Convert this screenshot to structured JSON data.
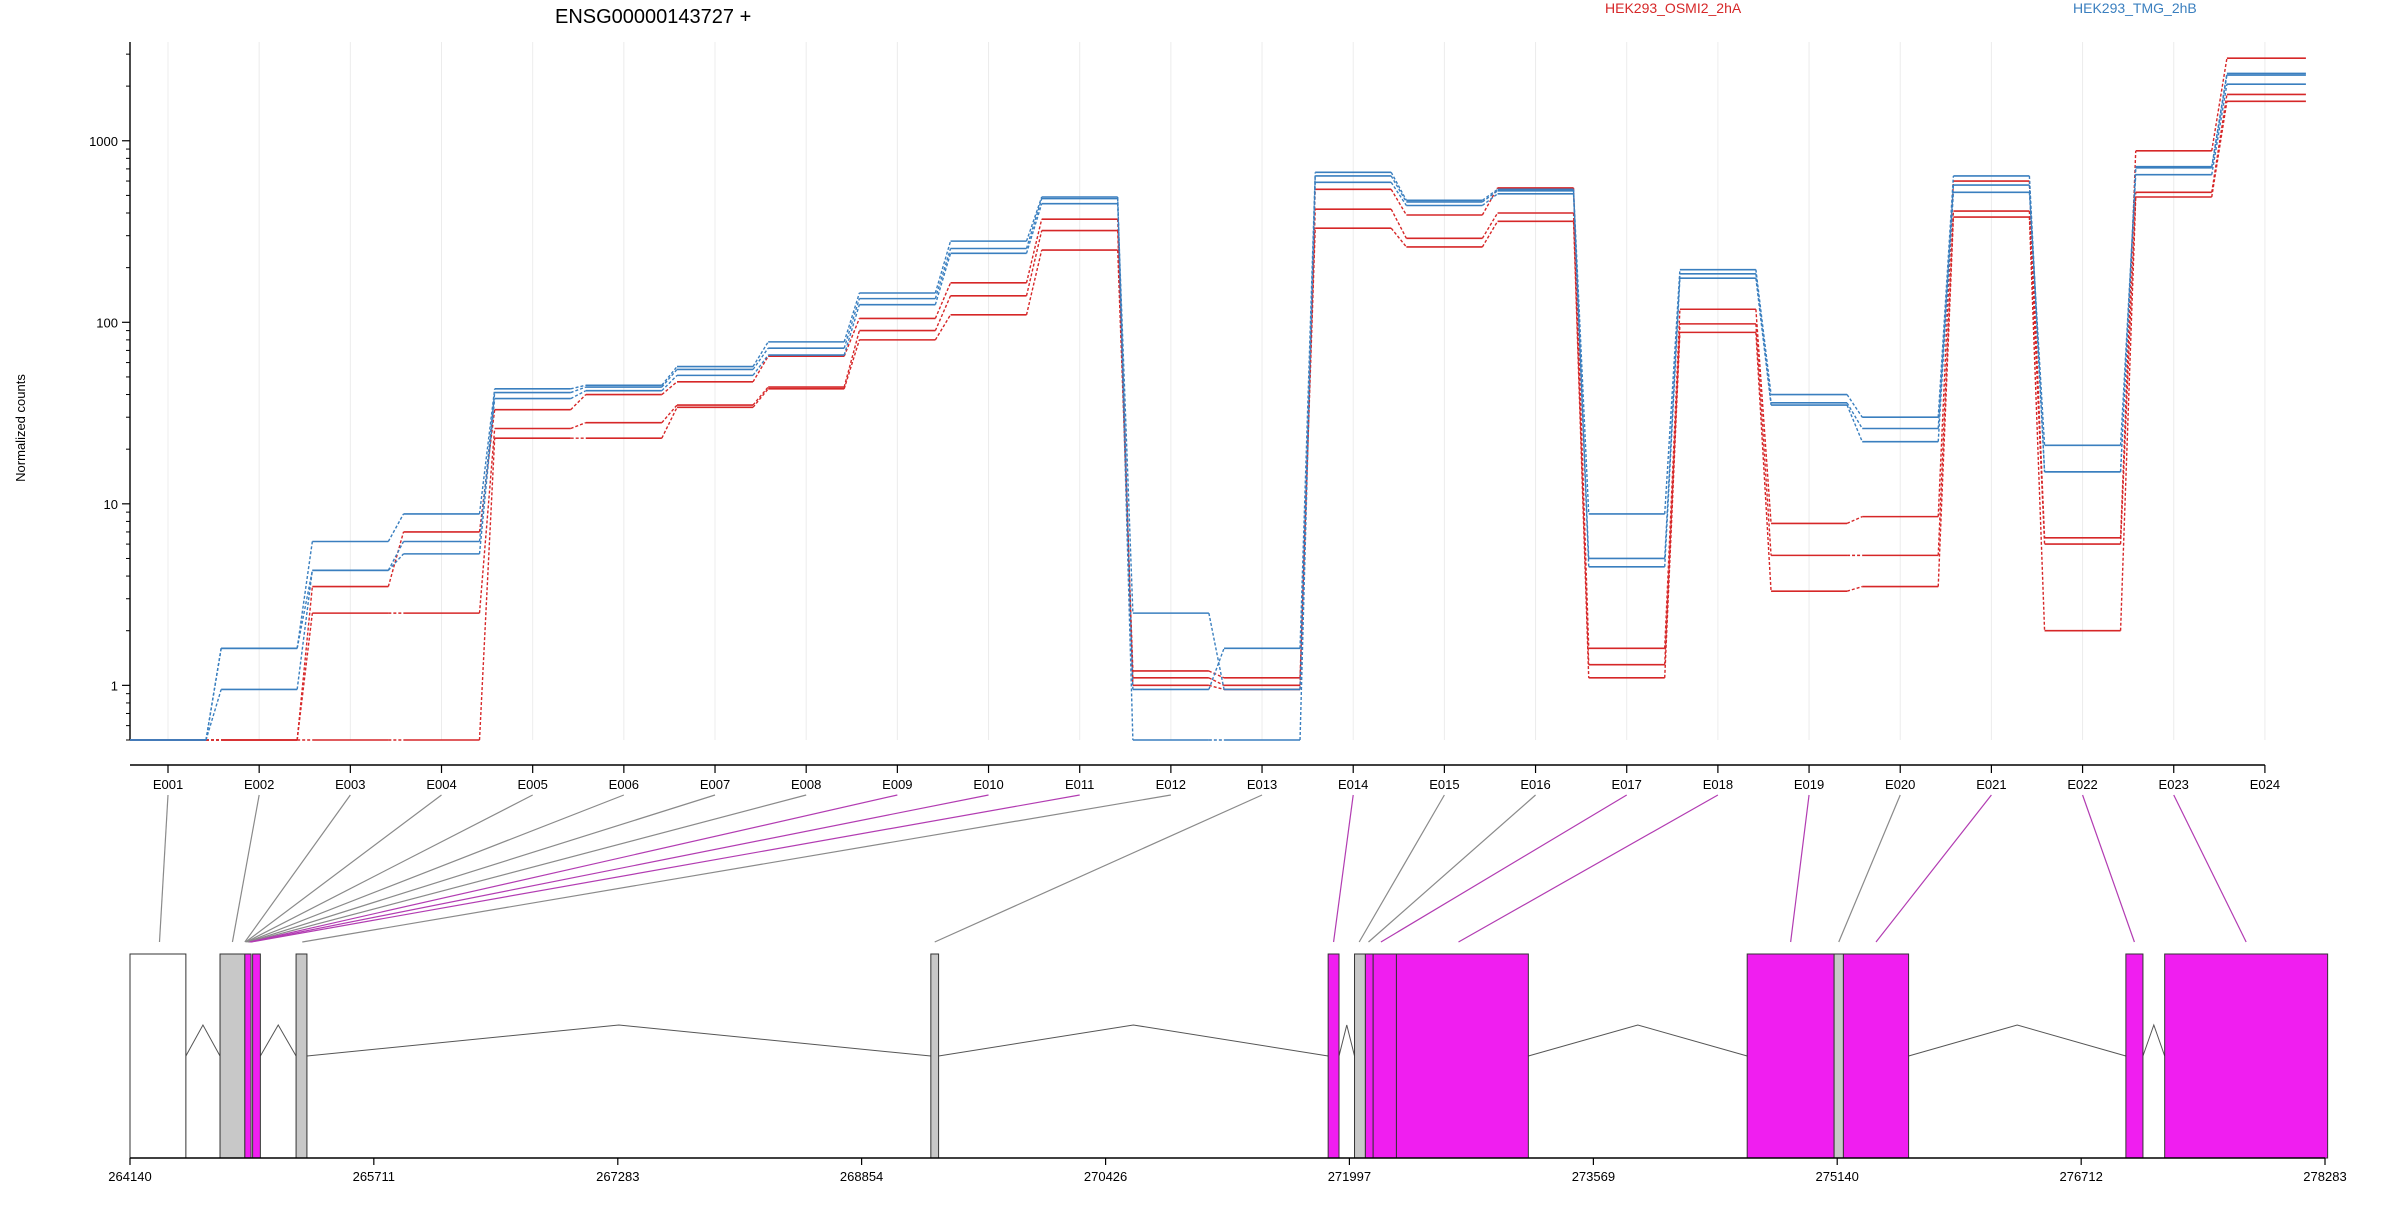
{
  "colors": {
    "group_a": "#d62728",
    "group_b": "#3a7fbf",
    "exon_gray": "#c8c8c8",
    "exon_magenta": "#f01ef0",
    "link_gray": "#8a8a8a",
    "link_magenta": "#b23cb2",
    "grid": "#ececec"
  },
  "chart_data": {
    "type": "line",
    "title": "ENSG00000143727 +",
    "ylabel": "Normalized counts",
    "yscale": "log",
    "ylim": [
      0.5,
      3500
    ],
    "yticks": [
      1,
      10,
      100,
      1000
    ],
    "yticklabels": [
      "1",
      "10",
      "100",
      "1000"
    ],
    "legend": [
      {
        "name": "HEK293_OSMI2_2hA",
        "color": "#d62728"
      },
      {
        "name": "HEK293_TMG_2hB",
        "color": "#3a7fbf"
      }
    ],
    "categories": [
      "E001",
      "E002",
      "E003",
      "E004",
      "E005",
      "E006",
      "E007",
      "E008",
      "E009",
      "E010",
      "E011",
      "E012",
      "E013",
      "E014",
      "E015",
      "E016",
      "E017",
      "E018",
      "E019",
      "E020",
      "E021",
      "E022",
      "E023",
      "E024"
    ],
    "series": [
      {
        "group": "HEK293_OSMI2_2hA",
        "values": [
          0.5,
          0.5,
          0.5,
          0.5,
          23,
          23,
          34,
          43,
          80,
          110,
          250,
          1.2,
          1.1,
          330,
          260,
          360,
          1.1,
          88,
          3.3,
          3.5,
          380,
          2.0,
          490,
          1650
        ]
      },
      {
        "group": "HEK293_OSMI2_2hA",
        "values": [
          0.5,
          0.5,
          2.5,
          2.5,
          26,
          28,
          35,
          44,
          90,
          140,
          320,
          1.1,
          1.0,
          420,
          290,
          400,
          1.3,
          98,
          5.2,
          5.2,
          410,
          6.0,
          520,
          1800
        ]
      },
      {
        "group": "HEK293_OSMI2_2hA",
        "values": [
          0.5,
          0.5,
          3.5,
          7.0,
          33,
          40,
          47,
          65,
          105,
          165,
          370,
          1.0,
          0.95,
          540,
          390,
          550,
          1.6,
          118,
          7.8,
          8.5,
          600,
          6.5,
          880,
          2850
        ]
      },
      {
        "group": "HEK293_TMG_2hB",
        "values": [
          0.5,
          1.6,
          4.3,
          5.3,
          38,
          42,
          51,
          66,
          125,
          240,
          450,
          2.5,
          0.95,
          590,
          440,
          510,
          4.5,
          175,
          35,
          22,
          520,
          21,
          650,
          2050
        ]
      },
      {
        "group": "HEK293_TMG_2hB",
        "values": [
          0.5,
          0.95,
          4.3,
          6.2,
          41,
          44,
          55,
          72,
          135,
          255,
          480,
          0.5,
          0.5,
          640,
          460,
          530,
          5.0,
          185,
          36,
          26,
          570,
          15,
          710,
          2300
        ]
      },
      {
        "group": "HEK293_TMG_2hB",
        "values": [
          0.5,
          1.6,
          6.2,
          8.8,
          43,
          45,
          57,
          78,
          145,
          280,
          490,
          0.95,
          1.6,
          670,
          470,
          540,
          8.8,
          195,
          40,
          30,
          640,
          15,
          720,
          2350
        ]
      }
    ],
    "gene_model": {
      "axis_ticks": [
        264140,
        265711,
        267283,
        268854,
        270426,
        271997,
        273569,
        275140,
        276712,
        278283
      ],
      "axis_labels": [
        "264140",
        "265711",
        "267283",
        "268854",
        "270426",
        "271997",
        "273569",
        "275140",
        "276712",
        "278283"
      ],
      "exons": [
        {
          "start": 264140,
          "end": 264500,
          "fill": "white"
        },
        {
          "start": 264720,
          "end": 264880,
          "fill": "gray"
        },
        {
          "start": 264880,
          "end": 264920,
          "fill": "magenta"
        },
        {
          "start": 264930,
          "end": 264980,
          "fill": "magenta"
        },
        {
          "start": 265210,
          "end": 265280,
          "fill": "gray"
        },
        {
          "start": 269300,
          "end": 269350,
          "fill": "gray"
        },
        {
          "start": 271860,
          "end": 271930,
          "fill": "magenta"
        },
        {
          "start": 272030,
          "end": 272100,
          "fill": "gray"
        },
        {
          "start": 272100,
          "end": 272150,
          "fill": "magenta"
        },
        {
          "start": 272150,
          "end": 272300,
          "fill": "magenta"
        },
        {
          "start": 272300,
          "end": 273150,
          "fill": "magenta"
        },
        {
          "start": 274560,
          "end": 275120,
          "fill": "magenta"
        },
        {
          "start": 275120,
          "end": 275180,
          "fill": "gray"
        },
        {
          "start": 275180,
          "end": 275600,
          "fill": "magenta"
        },
        {
          "start": 277000,
          "end": 277110,
          "fill": "magenta"
        },
        {
          "start": 277250,
          "end": 278300,
          "fill": "magenta"
        }
      ],
      "links": [
        {
          "exon": "E001",
          "pos": 264330,
          "color": "gray"
        },
        {
          "exon": "E002",
          "pos": 264800,
          "color": "gray"
        },
        {
          "exon": "E003",
          "pos": 264880,
          "color": "gray"
        },
        {
          "exon": "E004",
          "pos": 264885,
          "color": "gray"
        },
        {
          "exon": "E005",
          "pos": 264890,
          "color": "gray"
        },
        {
          "exon": "E006",
          "pos": 264895,
          "color": "gray"
        },
        {
          "exon": "E007",
          "pos": 264900,
          "color": "gray"
        },
        {
          "exon": "E008",
          "pos": 264905,
          "color": "gray"
        },
        {
          "exon": "E009",
          "pos": 264910,
          "color": "magenta"
        },
        {
          "exon": "E010",
          "pos": 264915,
          "color": "magenta"
        },
        {
          "exon": "E011",
          "pos": 264920,
          "color": "magenta"
        },
        {
          "exon": "E012",
          "pos": 265250,
          "color": "gray"
        },
        {
          "exon": "E013",
          "pos": 269325,
          "color": "gray"
        },
        {
          "exon": "E014",
          "pos": 271895,
          "color": "magenta"
        },
        {
          "exon": "E015",
          "pos": 272060,
          "color": "gray"
        },
        {
          "exon": "E016",
          "pos": 272120,
          "color": "gray"
        },
        {
          "exon": "E017",
          "pos": 272200,
          "color": "magenta"
        },
        {
          "exon": "E018",
          "pos": 272700,
          "color": "magenta"
        },
        {
          "exon": "E019",
          "pos": 274840,
          "color": "magenta"
        },
        {
          "exon": "E020",
          "pos": 275150,
          "color": "gray"
        },
        {
          "exon": "E021",
          "pos": 275390,
          "color": "magenta"
        },
        {
          "exon": "E022",
          "pos": 277055,
          "color": "magenta"
        },
        {
          "exon": "E023",
          "pos": 277775,
          "color": "magenta"
        }
      ]
    }
  }
}
